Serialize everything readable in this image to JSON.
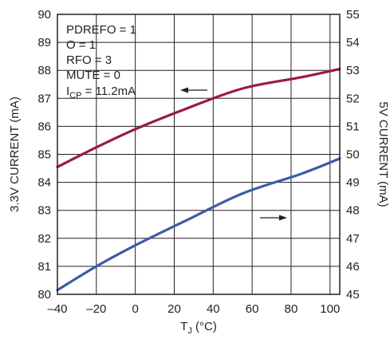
{
  "chart_data": {
    "type": "line",
    "title": "",
    "xlabel": {
      "main": "T",
      "sub": "J",
      "rest": " (°C)"
    },
    "ylabel_left": "3.3V CURRENT (mA)",
    "ylabel_right": "5V CURRENT (mA)",
    "xlim": [
      -40,
      105
    ],
    "ylim_left": [
      80,
      90
    ],
    "ylim_right": [
      45,
      55
    ],
    "x_ticks": [
      "–40",
      "–20",
      "0",
      "20",
      "40",
      "60",
      "80",
      "100"
    ],
    "x_tick_values": [
      -40,
      -20,
      0,
      20,
      40,
      60,
      80,
      100
    ],
    "y_ticks_left": [
      "80",
      "81",
      "82",
      "83",
      "84",
      "85",
      "86",
      "87",
      "88",
      "89",
      "90"
    ],
    "y_ticks_right": [
      "45",
      "46",
      "47",
      "48",
      "49",
      "50",
      "51",
      "52",
      "53",
      "54",
      "55"
    ],
    "grid": true,
    "annotations": [
      "PDREFO = 1",
      "O = 1",
      "RFO = 3",
      "MUTE = 0"
    ],
    "annotation_icp": {
      "main": "I",
      "sub": "CP",
      "rest": " = 11.2mA"
    },
    "series": [
      {
        "axis": "left",
        "color": "#9b1b3a",
        "x": [
          -40,
          -20,
          0,
          25,
          55,
          85,
          105
        ],
        "y": [
          84.55,
          85.25,
          85.9,
          86.6,
          87.35,
          87.75,
          88.05
        ]
      },
      {
        "axis": "right",
        "color": "#3e5ba9",
        "x": [
          -40,
          -20,
          0,
          25,
          55,
          85,
          105
        ],
        "y": [
          45.15,
          46.0,
          46.75,
          47.6,
          48.6,
          49.3,
          49.85
        ]
      }
    ],
    "arrows": [
      {
        "direction": "left",
        "series": 0
      },
      {
        "direction": "right",
        "series": 1
      }
    ]
  }
}
